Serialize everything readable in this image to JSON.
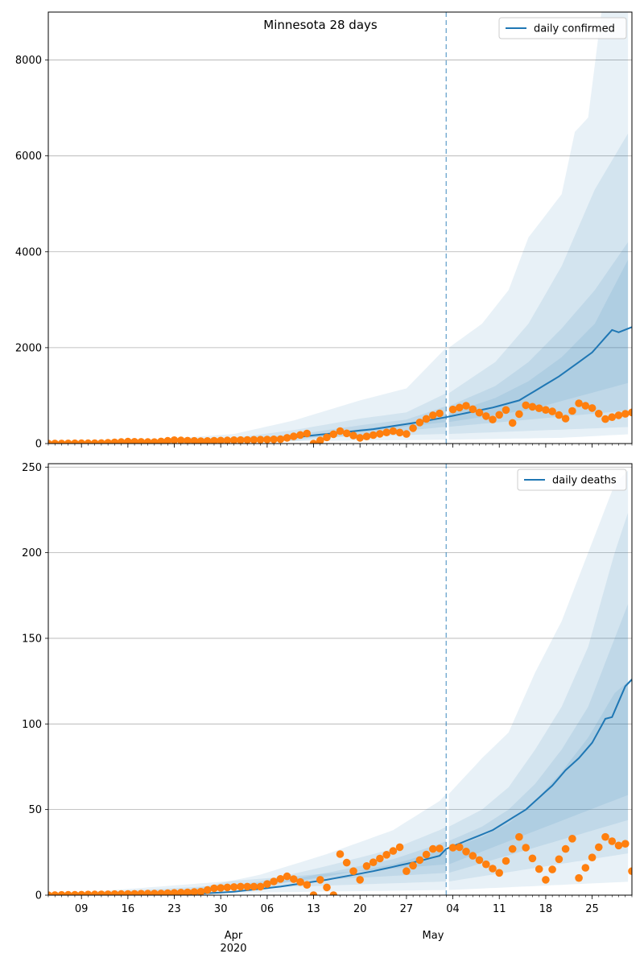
{
  "figure": {
    "title": "Minnesota 28 days"
  },
  "colors": {
    "model": "#1f77b4",
    "observed": "#ff7f0e",
    "grid": "#b0b0b0",
    "band": "#1f77b4"
  },
  "x_axis": {
    "day_ticks": [
      "09",
      "16",
      "23",
      "30",
      "06",
      "13",
      "20",
      "27",
      "04",
      "11",
      "18",
      "25"
    ],
    "month_labels": [
      "Apr",
      "May"
    ],
    "year_label": "2020"
  },
  "chart_data": [
    {
      "type": "line",
      "x_start": "2020-03-04",
      "x_end": "2020-05-31",
      "forecast_start": "2020-05-03",
      "ylim": [
        0,
        9000
      ],
      "yticks": [
        0,
        2000,
        4000,
        6000,
        8000
      ],
      "grid": "horizontal",
      "legend": {
        "position": "top-right",
        "entries": [
          "daily confirmed"
        ]
      },
      "series": [
        {
          "name": "daily confirmed",
          "role": "model",
          "anchors": [
            [
              "2020-03-04",
              0
            ],
            [
              "2020-03-15",
              20
            ],
            [
              "2020-03-25",
              60
            ],
            [
              "2020-04-01",
              80
            ],
            [
              "2020-04-08",
              100
            ],
            [
              "2020-04-15",
              200
            ],
            [
              "2020-04-22",
              300
            ],
            [
              "2020-04-29",
              450
            ],
            [
              "2020-05-03",
              550
            ],
            [
              "2020-05-10",
              750
            ],
            [
              "2020-05-14",
              900
            ],
            [
              "2020-05-17",
              1150
            ],
            [
              "2020-05-20",
              1400
            ],
            [
              "2020-05-23",
              1700
            ],
            [
              "2020-05-25",
              1900
            ],
            [
              "2020-05-28",
              2370
            ],
            [
              "2020-05-29",
              2320
            ],
            [
              "2020-05-31",
              2430
            ]
          ]
        },
        {
          "name": "observed",
          "role": "observed",
          "anchors": [
            [
              "2020-03-04",
              0
            ],
            [
              "2020-03-12",
              10
            ],
            [
              "2020-03-16",
              40
            ],
            [
              "2020-03-20",
              30
            ],
            [
              "2020-03-23",
              70
            ],
            [
              "2020-03-27",
              50
            ],
            [
              "2020-04-01",
              70
            ],
            [
              "2020-04-08",
              90
            ],
            [
              "2020-04-12",
              210
            ],
            [
              "2020-04-13",
              0
            ],
            [
              "2020-04-17",
              260
            ],
            [
              "2020-04-20",
              120
            ],
            [
              "2020-04-25",
              260
            ],
            [
              "2020-04-27",
              200
            ],
            [
              "2020-04-29",
              440
            ],
            [
              "2020-05-01",
              590
            ],
            [
              "2020-05-06",
              790
            ],
            [
              "2020-05-10",
              500
            ],
            [
              "2020-05-12",
              700
            ],
            [
              "2020-05-13",
              430
            ],
            [
              "2020-05-15",
              800
            ],
            [
              "2020-05-19",
              670
            ],
            [
              "2020-05-21",
              520
            ],
            [
              "2020-05-23",
              840
            ],
            [
              "2020-05-25",
              740
            ],
            [
              "2020-05-27",
              510
            ],
            [
              "2020-05-29",
              590
            ],
            [
              "2020-05-31",
              650
            ]
          ]
        }
      ],
      "bands": [
        {
          "level": "outer",
          "upper": [
            [
              "2020-03-04",
              0
            ],
            [
              "2020-03-20",
              80
            ],
            [
              "2020-04-01",
              200
            ],
            [
              "2020-04-10",
              480
            ],
            [
              "2020-04-20",
              900
            ],
            [
              "2020-04-27",
              1150
            ],
            [
              "2020-05-03",
              2000
            ],
            [
              "2020-05-08",
              2500
            ],
            [
              "2020-05-12",
              3200
            ],
            [
              "2020-05-15",
              4300
            ],
            [
              "2020-05-20",
              5200
            ],
            [
              "2020-05-22",
              6500
            ],
            [
              "2020-05-24",
              6800
            ],
            [
              "2020-05-26",
              9000
            ],
            [
              "2020-05-31",
              9000
            ]
          ],
          "lower": [
            [
              "2020-03-04",
              0
            ],
            [
              "2020-05-03",
              80
            ],
            [
              "2020-05-20",
              120
            ],
            [
              "2020-05-31",
              200
            ]
          ]
        },
        {
          "level": "upper-mid",
          "upper": [
            [
              "2020-03-04",
              0
            ],
            [
              "2020-03-20",
              50
            ],
            [
              "2020-04-01",
              120
            ],
            [
              "2020-04-10",
              280
            ],
            [
              "2020-04-20",
              520
            ],
            [
              "2020-04-27",
              650
            ],
            [
              "2020-05-03",
              1050
            ],
            [
              "2020-05-10",
              1700
            ],
            [
              "2020-05-15",
              2500
            ],
            [
              "2020-05-20",
              3700
            ],
            [
              "2020-05-25",
              5300
            ],
            [
              "2020-05-31",
              6700
            ]
          ],
          "lower": [
            [
              "2020-03-04",
              0
            ],
            [
              "2020-05-03",
              200
            ],
            [
              "2020-05-31",
              350
            ]
          ]
        },
        {
          "level": "lower-mid",
          "upper": [
            [
              "2020-03-04",
              0
            ],
            [
              "2020-03-20",
              35
            ],
            [
              "2020-04-01",
              90
            ],
            [
              "2020-04-10",
              180
            ],
            [
              "2020-04-20",
              380
            ],
            [
              "2020-04-27",
              500
            ],
            [
              "2020-05-03",
              780
            ],
            [
              "2020-05-10",
              1200
            ],
            [
              "2020-05-15",
              1700
            ],
            [
              "2020-05-20",
              2400
            ],
            [
              "2020-05-25",
              3200
            ],
            [
              "2020-05-31",
              4400
            ]
          ],
          "lower": [
            [
              "2020-03-04",
              0
            ],
            [
              "2020-04-10",
              50
            ],
            [
              "2020-05-03",
              350
            ],
            [
              "2020-05-31",
              700
            ]
          ]
        },
        {
          "level": "inner",
          "upper": [
            [
              "2020-03-04",
              0
            ],
            [
              "2020-03-20",
              25
            ],
            [
              "2020-04-01",
              70
            ],
            [
              "2020-04-10",
              140
            ],
            [
              "2020-04-20",
              300
            ],
            [
              "2020-04-27",
              420
            ],
            [
              "2020-05-03",
              620
            ],
            [
              "2020-05-10",
              950
            ],
            [
              "2020-05-15",
              1300
            ],
            [
              "2020-05-20",
              1800
            ],
            [
              "2020-05-25",
              2500
            ],
            [
              "2020-05-31",
              4100
            ]
          ],
          "lower": [
            [
              "2020-03-04",
              0
            ],
            [
              "2020-04-10",
              80
            ],
            [
              "2020-05-03",
              450
            ],
            [
              "2020-05-15",
              700
            ],
            [
              "2020-05-31",
              1300
            ]
          ]
        }
      ]
    },
    {
      "type": "line",
      "x_start": "2020-03-04",
      "x_end": "2020-05-31",
      "forecast_start": "2020-05-03",
      "ylim": [
        0,
        252
      ],
      "yticks": [
        0,
        50,
        100,
        150,
        200,
        250
      ],
      "grid": "horizontal",
      "legend": {
        "position": "top-right",
        "entries": [
          "daily deaths"
        ]
      },
      "series": [
        {
          "name": "daily deaths",
          "role": "model",
          "anchors": [
            [
              "2020-03-04",
              0
            ],
            [
              "2020-03-25",
              0.5
            ],
            [
              "2020-04-01",
              2
            ],
            [
              "2020-04-08",
              5
            ],
            [
              "2020-04-15",
              9
            ],
            [
              "2020-04-22",
              14
            ],
            [
              "2020-04-29",
              20
            ],
            [
              "2020-05-02",
              23
            ],
            [
              "2020-05-03",
              27
            ],
            [
              "2020-05-10",
              38
            ],
            [
              "2020-05-15",
              50
            ],
            [
              "2020-05-19",
              64
            ],
            [
              "2020-05-21",
              73
            ],
            [
              "2020-05-23",
              80
            ],
            [
              "2020-05-25",
              89
            ],
            [
              "2020-05-27",
              103
            ],
            [
              "2020-05-28",
              104
            ],
            [
              "2020-05-30",
              122
            ],
            [
              "2020-05-31",
              126
            ]
          ]
        },
        {
          "name": "observed",
          "role": "observed",
          "anchors": [
            [
              "2020-03-04",
              0
            ],
            [
              "2020-03-21",
              1
            ],
            [
              "2020-03-27",
              2
            ],
            [
              "2020-03-29",
              4
            ],
            [
              "2020-04-02",
              5
            ],
            [
              "2020-04-05",
              5
            ],
            [
              "2020-04-09",
              11
            ],
            [
              "2020-04-12",
              6
            ],
            [
              "2020-04-13",
              0
            ],
            [
              "2020-04-14",
              9
            ],
            [
              "2020-04-16",
              0
            ],
            [
              "2020-04-17",
              24
            ],
            [
              "2020-04-20",
              9
            ],
            [
              "2020-04-21",
              17
            ],
            [
              "2020-04-26",
              28
            ],
            [
              "2020-04-27",
              14
            ],
            [
              "2020-05-01",
              27
            ],
            [
              "2020-05-05",
              28
            ],
            [
              "2020-05-11",
              13
            ],
            [
              "2020-05-14",
              34
            ],
            [
              "2020-05-18",
              9
            ],
            [
              "2020-05-22",
              33
            ],
            [
              "2020-05-23",
              10
            ],
            [
              "2020-05-27",
              34
            ],
            [
              "2020-05-29",
              29
            ],
            [
              "2020-05-30",
              30
            ],
            [
              "2020-05-31",
              14
            ]
          ]
        }
      ],
      "bands": [
        {
          "level": "outer",
          "upper": [
            [
              "2020-03-04",
              0
            ],
            [
              "2020-03-25",
              3
            ],
            [
              "2020-04-05",
              12
            ],
            [
              "2020-04-15",
              24
            ],
            [
              "2020-04-25",
              38
            ],
            [
              "2020-05-02",
              55
            ],
            [
              "2020-05-08",
              80
            ],
            [
              "2020-05-12",
              95
            ],
            [
              "2020-05-16",
              130
            ],
            [
              "2020-05-20",
              160
            ],
            [
              "2020-05-24",
              200
            ],
            [
              "2020-05-28",
              240
            ],
            [
              "2020-05-31",
              252
            ]
          ],
          "lower": [
            [
              "2020-03-04",
              0
            ],
            [
              "2020-05-03",
              3
            ],
            [
              "2020-05-31",
              8
            ]
          ]
        },
        {
          "level": "upper-mid",
          "upper": [
            [
              "2020-03-04",
              0
            ],
            [
              "2020-03-25",
              2
            ],
            [
              "2020-04-05",
              8
            ],
            [
              "2020-04-15",
              17
            ],
            [
              "2020-04-25",
              27
            ],
            [
              "2020-05-02",
              38
            ],
            [
              "2020-05-08",
              50
            ],
            [
              "2020-05-12",
              63
            ],
            [
              "2020-05-16",
              85
            ],
            [
              "2020-05-20",
              110
            ],
            [
              "2020-05-24",
              145
            ],
            [
              "2020-05-28",
              200
            ],
            [
              "2020-05-31",
              235
            ]
          ],
          "lower": [
            [
              "2020-03-04",
              0
            ],
            [
              "2020-05-03",
              8
            ],
            [
              "2020-05-31",
              25
            ]
          ]
        },
        {
          "level": "lower-mid",
          "upper": [
            [
              "2020-03-04",
              0
            ],
            [
              "2020-03-25",
              1.5
            ],
            [
              "2020-04-05",
              6
            ],
            [
              "2020-04-15",
              13
            ],
            [
              "2020-04-25",
              21
            ],
            [
              "2020-05-02",
              30
            ],
            [
              "2020-05-08",
              40
            ],
            [
              "2020-05-12",
              50
            ],
            [
              "2020-05-16",
              65
            ],
            [
              "2020-05-20",
              85
            ],
            [
              "2020-05-24",
              110
            ],
            [
              "2020-05-28",
              150
            ],
            [
              "2020-05-31",
              180
            ]
          ],
          "lower": [
            [
              "2020-03-04",
              0
            ],
            [
              "2020-05-03",
              13
            ],
            [
              "2020-05-31",
              45
            ]
          ]
        },
        {
          "level": "inner",
          "upper": [
            [
              "2020-03-04",
              0
            ],
            [
              "2020-03-25",
              1
            ],
            [
              "2020-04-05",
              5
            ],
            [
              "2020-04-15",
              11
            ],
            [
              "2020-04-25",
              18
            ],
            [
              "2020-05-02",
              26
            ],
            [
              "2020-05-08",
              34
            ],
            [
              "2020-05-12",
              42
            ],
            [
              "2020-05-16",
              55
            ],
            [
              "2020-05-20",
              72
            ],
            [
              "2020-05-24",
              92
            ],
            [
              "2020-05-28",
              118
            ],
            [
              "2020-05-31",
              128
            ]
          ],
          "lower": [
            [
              "2020-03-04",
              0
            ],
            [
              "2020-05-03",
              18
            ],
            [
              "2020-05-31",
              60
            ]
          ]
        }
      ]
    }
  ]
}
